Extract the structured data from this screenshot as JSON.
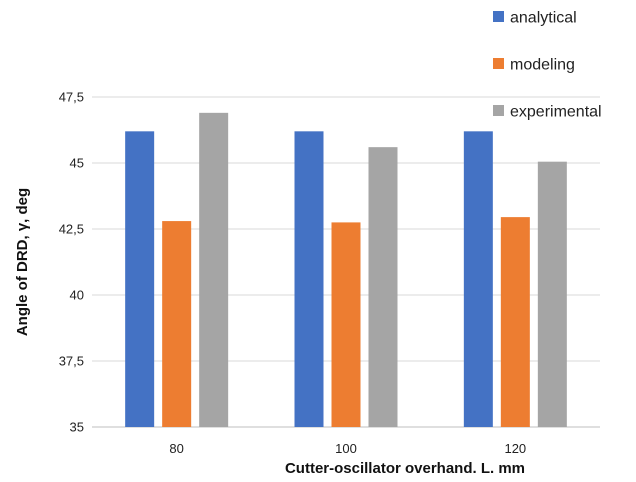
{
  "chart_data": {
    "type": "bar",
    "title": "",
    "xlabel": "Cutter-oscillator overhand. L. mm",
    "ylabel": "Angle of DRD, γ, deg",
    "categories": [
      "80",
      "100",
      "120"
    ],
    "ylim": [
      35,
      47.5
    ],
    "yticks": [
      "35",
      "37,5",
      "40",
      "42,5",
      "45",
      "47,5"
    ],
    "grid": true,
    "legend_position": "top-right",
    "series": [
      {
        "name": "analytical",
        "color": "#4472c4",
        "values": [
          46.2,
          46.2,
          46.2
        ]
      },
      {
        "name": "modeling",
        "color": "#ed7d31",
        "values": [
          42.8,
          42.75,
          42.95
        ]
      },
      {
        "name": "experimental",
        "color": "#a5a5a5",
        "values": [
          46.9,
          45.6,
          45.05
        ]
      }
    ]
  }
}
